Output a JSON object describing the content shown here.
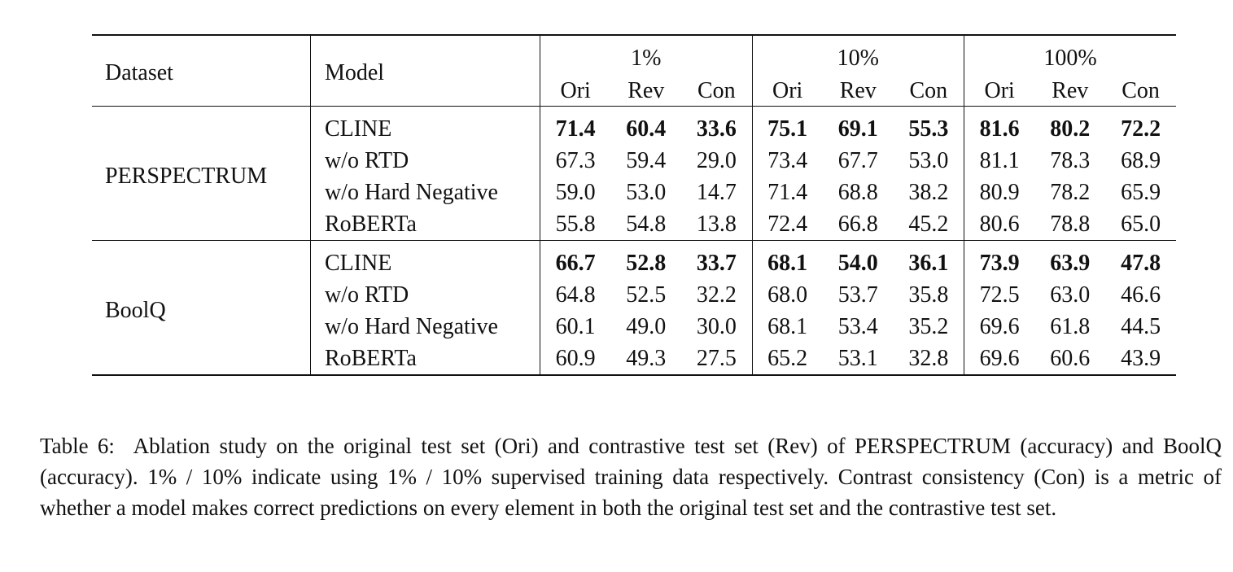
{
  "table": {
    "headers": {
      "dataset": "Dataset",
      "model": "Model",
      "groups": [
        "1%",
        "10%",
        "100%"
      ],
      "subcolumns": [
        "Ori",
        "Rev",
        "Con"
      ]
    },
    "sections": [
      {
        "dataset": "PERSPECTRUM",
        "rows": [
          {
            "model": "CLINE",
            "bold": true,
            "values": [
              "71.4",
              "60.4",
              "33.6",
              "75.1",
              "69.1",
              "55.3",
              "81.6",
              "80.2",
              "72.2"
            ]
          },
          {
            "model": "w/o RTD",
            "bold": false,
            "values": [
              "67.3",
              "59.4",
              "29.0",
              "73.4",
              "67.7",
              "53.0",
              "81.1",
              "78.3",
              "68.9"
            ]
          },
          {
            "model": "w/o Hard Negative",
            "bold": false,
            "values": [
              "59.0",
              "53.0",
              "14.7",
              "71.4",
              "68.8",
              "38.2",
              "80.9",
              "78.2",
              "65.9"
            ]
          },
          {
            "model": "RoBERTa",
            "bold": false,
            "values": [
              "55.8",
              "54.8",
              "13.8",
              "72.4",
              "66.8",
              "45.2",
              "80.6",
              "78.8",
              "65.0"
            ]
          }
        ]
      },
      {
        "dataset": "BoolQ",
        "rows": [
          {
            "model": "CLINE",
            "bold": true,
            "values": [
              "66.7",
              "52.8",
              "33.7",
              "68.1",
              "54.0",
              "36.1",
              "73.9",
              "63.9",
              "47.8"
            ]
          },
          {
            "model": "w/o RTD",
            "bold": false,
            "values": [
              "64.8",
              "52.5",
              "32.2",
              "68.0",
              "53.7",
              "35.8",
              "72.5",
              "63.0",
              "46.6"
            ]
          },
          {
            "model": "w/o Hard Negative",
            "bold": false,
            "values": [
              "60.1",
              "49.0",
              "30.0",
              "68.1",
              "53.4",
              "35.2",
              "69.6",
              "61.8",
              "44.5"
            ]
          },
          {
            "model": "RoBERTa",
            "bold": false,
            "values": [
              "60.9",
              "49.3",
              "27.5",
              "65.2",
              "53.1",
              "32.8",
              "69.6",
              "60.6",
              "43.9"
            ]
          }
        ]
      }
    ]
  },
  "caption": {
    "label": "Table 6:",
    "text": "Ablation study on the original test set (Ori) and contrastive test set (Rev) of PERSPECTRUM (accuracy) and BoolQ (accuracy). 1% / 10% indicate using 1% / 10% supervised training data respectively. Contrast consistency (Con) is a metric of whether a model makes correct predictions on every element in both the original test set and the contrastive test set."
  }
}
